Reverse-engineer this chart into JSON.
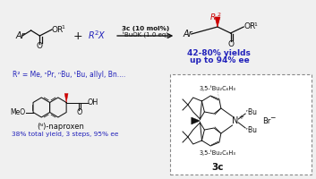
{
  "bg_color": "#f0f0f0",
  "reaction_condition1": "3c (10 mol%)",
  "reaction_condition2": "ᵗBuOK (1.0 eq)",
  "r2_label": "R² = Me, ⁿPr, ⁿBu, ᵗBu, allyl, Bn....",
  "yield_label1": "42-80% yields",
  "yield_label2": "up to 94% ee",
  "naproxen_label": "(ᴺ)-naproxen",
  "naproxen_yield": "38% total yield, 3 steps, 95% ee",
  "cat_label": "3c",
  "cat_group1": "3,5-ᵗBu₂C₆H₃",
  "cat_group2": "3,5-ᵗBu₂C₆H₃",
  "cat_nbu1": "ⁿBu",
  "cat_nbu2": "ⁿBu",
  "cat_br": "Br⁻",
  "blue_color": "#2222bb",
  "red_color": "#cc0000",
  "black_color": "#111111",
  "gray_color": "#888888",
  "white_color": "#ffffff"
}
